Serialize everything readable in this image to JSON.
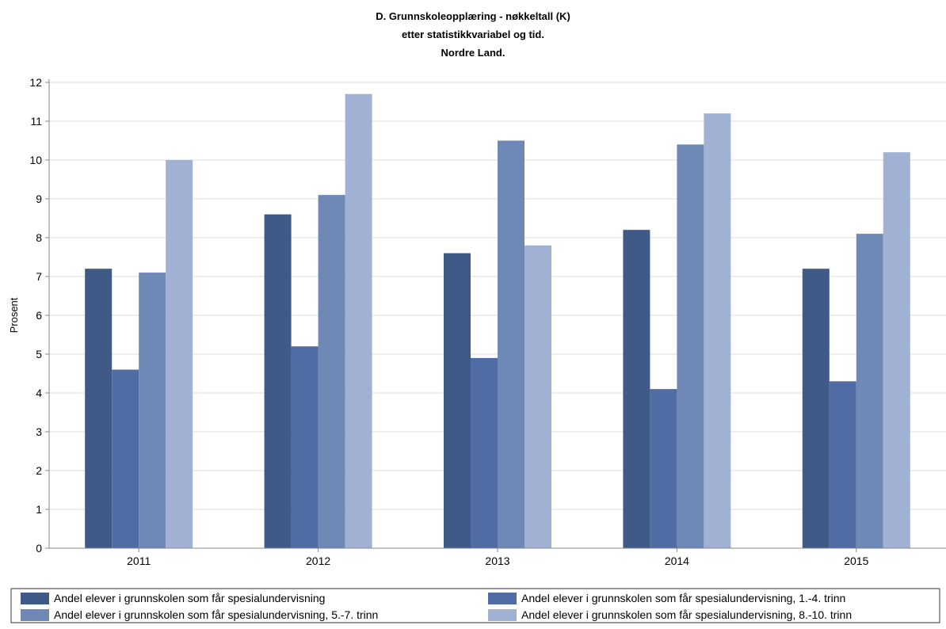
{
  "chart_data": {
    "type": "bar",
    "title_lines": [
      "D. Grunnskoleopplæring - nøkkeltall (K)",
      "etter statistikkvariabel og tid.",
      "Nordre Land."
    ],
    "xlabel": "",
    "ylabel": "Prosent",
    "ylim": [
      0,
      12
    ],
    "yticks": [
      "0",
      "1",
      "2",
      "3",
      "4",
      "5",
      "6",
      "7",
      "8",
      "9",
      "10",
      "11",
      "12"
    ],
    "grid": true,
    "legend_position": "bottom",
    "categories": [
      "2011",
      "2012",
      "2013",
      "2014",
      "2015"
    ],
    "series": [
      {
        "name": "Andel elever i grunnskolen som får spesialundervisning",
        "color": "#3f5a86",
        "values": [
          7.2,
          8.6,
          7.6,
          8.2,
          7.2
        ]
      },
      {
        "name": "Andel elever i grunnskolen som får spesialundervisning, 1.-4. trinn",
        "color": "#4f6ca4",
        "values": [
          4.6,
          5.2,
          4.9,
          4.1,
          4.3
        ]
      },
      {
        "name": "Andel elever i grunnskolen som får spesialundervisning, 5.-7. trinn",
        "color": "#6f89b7",
        "values": [
          7.1,
          9.1,
          10.5,
          10.4,
          8.1
        ]
      },
      {
        "name": "Andel elever i grunnskolen som får spesialundervisning, 8.-10. trinn",
        "color": "#a0b1d3",
        "values": [
          10.0,
          11.7,
          7.8,
          11.2,
          10.2
        ]
      }
    ]
  }
}
